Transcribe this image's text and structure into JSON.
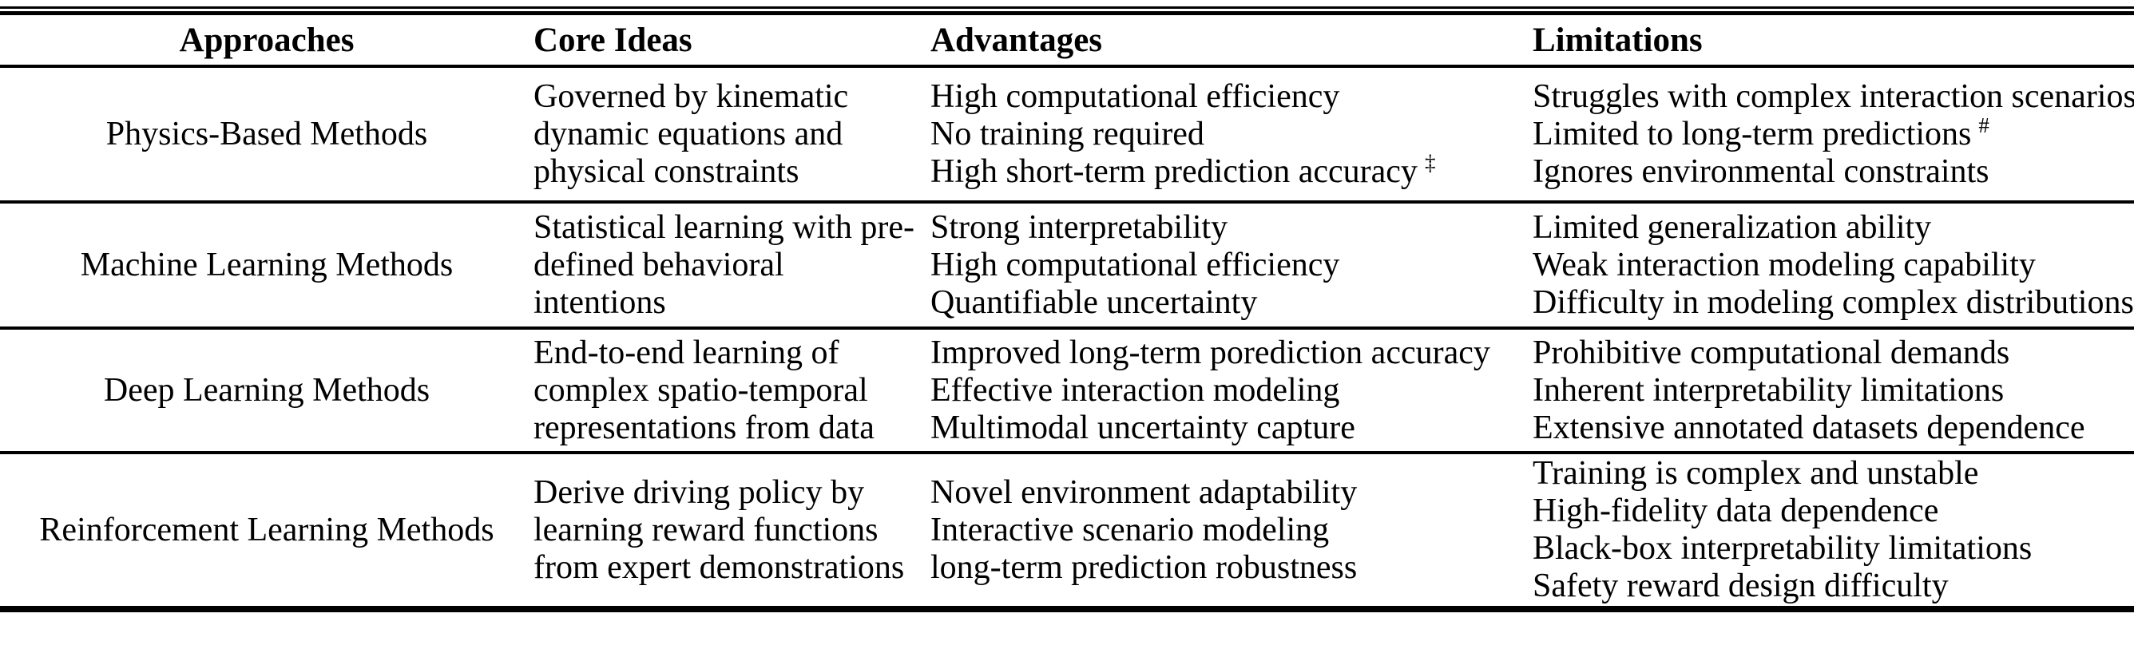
{
  "colors": {
    "text": "#000000",
    "background": "#ffffff",
    "rule": "#000000"
  },
  "table": {
    "columns": [
      "Approaches",
      "Core Ideas",
      "Advantages",
      "Limitations"
    ],
    "rows": [
      {
        "approach": "Physics-Based Methods",
        "core_ideas": "Governed by kinematic dynamic equations and physical constraints",
        "advantages": [
          {
            "text": "High computational efficiency"
          },
          {
            "text": "No training required"
          },
          {
            "text": "High short-term prediction accuracy",
            "sup": "‡"
          }
        ],
        "limitations": [
          {
            "text": "Struggles with complex interaction scenarios"
          },
          {
            "text": "Limited to long-term predictions",
            "sup": "#"
          },
          {
            "text": "Ignores environmental constraints"
          }
        ]
      },
      {
        "approach": "Machine Learning Methods",
        "core_ideas": "Statistical learning with pre-defined behavioral intentions",
        "advantages": [
          {
            "text": "Strong interpretability"
          },
          {
            "text": "High computational efficiency"
          },
          {
            "text": "Quantifiable uncertainty"
          }
        ],
        "limitations": [
          {
            "text": "Limited generalization ability"
          },
          {
            "text": "Weak interaction modeling capability"
          },
          {
            "text": "Difficulty in modeling complex distributions"
          }
        ]
      },
      {
        "approach": "Deep Learning Methods",
        "core_ideas": "End-to-end learning of complex spatio-temporal representations from data",
        "advantages": [
          {
            "text": "Improved long-term porediction accuracy"
          },
          {
            "text": "Effective interaction modeling"
          },
          {
            "text": "Multimodal uncertainty capture"
          }
        ],
        "limitations": [
          {
            "text": "Prohibitive computational demands"
          },
          {
            "text": "Inherent interpretability limitations"
          },
          {
            "text": "Extensive annotated datasets dependence"
          }
        ]
      },
      {
        "approach": "Reinforcement Learning Methods",
        "core_ideas": "Derive driving policy by learning reward functions from expert demonstrations",
        "advantages": [
          {
            "text": "Novel environment adaptability"
          },
          {
            "text": "Interactive scenario modeling"
          },
          {
            "text": "long-term prediction robustness"
          }
        ],
        "limitations": [
          {
            "text": "Training is complex and unstable"
          },
          {
            "text": "High-fidelity data dependence"
          },
          {
            "text": "Black-box interpretability limitations"
          },
          {
            "text": "Safety reward design difficulty"
          }
        ]
      }
    ]
  }
}
